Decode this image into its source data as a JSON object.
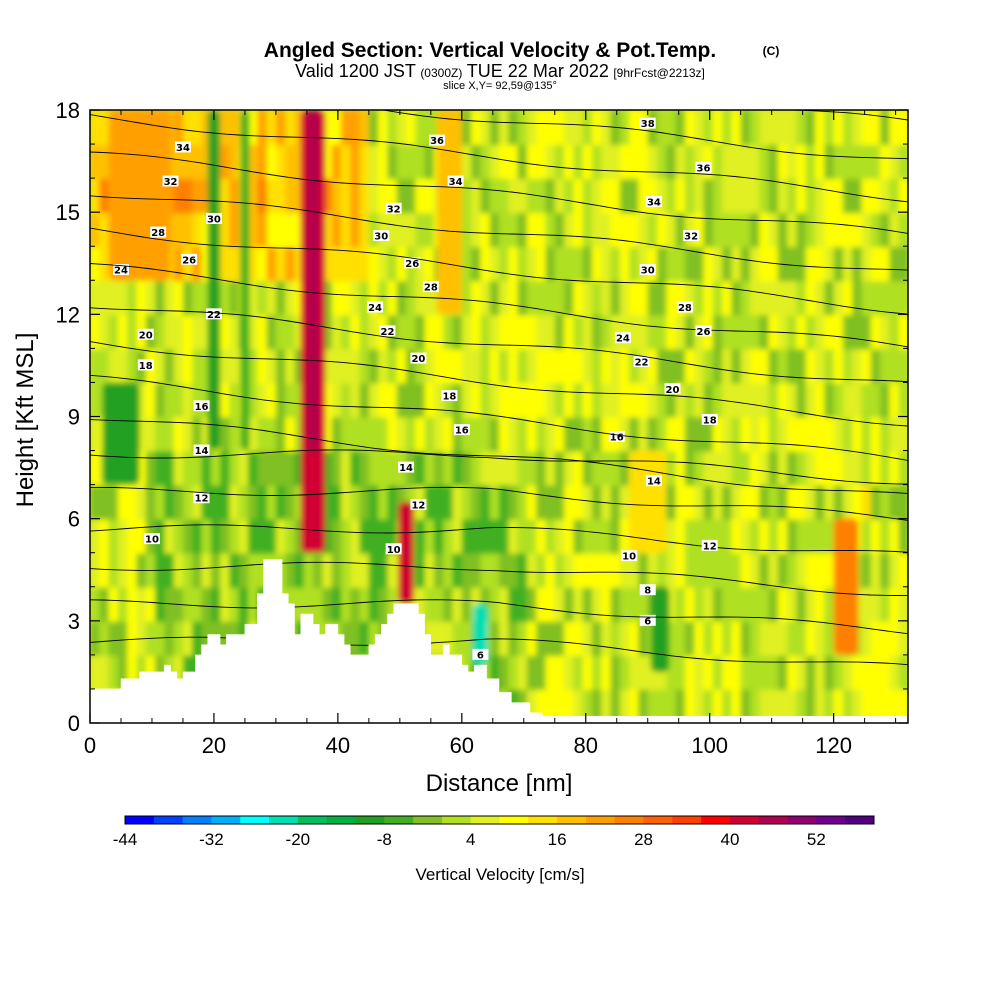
{
  "chart_data": {
    "type": "heatmap",
    "title": "Angled Section: Vertical Velocity & Pot.Temp.",
    "title_unit": "(C)",
    "subtitle_parts": [
      "Valid 1200 JST",
      "(0300Z)",
      "TUE 22 Mar 2022",
      "[9hrFcst@2213z]"
    ],
    "subtitle2": "slice X,Y= 92,59@135°",
    "xlabel": "Distance [nm]",
    "ylabel": "Height [Kft MSL]",
    "xlim": [
      0,
      132
    ],
    "ylim": [
      0,
      18
    ],
    "x_ticks": [
      "0",
      "20",
      "40",
      "60",
      "80",
      "100",
      "120"
    ],
    "y_ticks": [
      "0",
      "3",
      "6",
      "9",
      "12",
      "15",
      "18"
    ],
    "colorbar": {
      "label": "Vertical Velocity [cm/s]",
      "tick_labels": [
        "-44",
        "-32",
        "-20",
        "-8",
        "4",
        "16",
        "28",
        "40",
        "52"
      ],
      "colors": [
        "#0000ff",
        "#0040ff",
        "#0080ff",
        "#00b0ff",
        "#00ffff",
        "#00e0b0",
        "#00c060",
        "#00b040",
        "#20a020",
        "#40b020",
        "#80c020",
        "#b0e020",
        "#e0f020",
        "#ffff00",
        "#ffe000",
        "#ffc000",
        "#ffa000",
        "#ff8000",
        "#ff6000",
        "#ff4000",
        "#ff0000",
        "#d00030",
        "#b00050",
        "#900070",
        "#700090",
        "#500080"
      ]
    },
    "terrain_profile": [
      {
        "x": 0,
        "h": 1.0
      },
      {
        "x": 5,
        "h": 1.0
      },
      {
        "x": 5,
        "h": 1.3
      },
      {
        "x": 8,
        "h": 1.3
      },
      {
        "x": 8,
        "h": 1.5
      },
      {
        "x": 12,
        "h": 1.5
      },
      {
        "x": 12,
        "h": 1.7
      },
      {
        "x": 13,
        "h": 1.7
      },
      {
        "x": 13,
        "h": 1.5
      },
      {
        "x": 14,
        "h": 1.5
      },
      {
        "x": 14,
        "h": 1.3
      },
      {
        "x": 15,
        "h": 1.3
      },
      {
        "x": 15,
        "h": 1.5
      },
      {
        "x": 17,
        "h": 1.5
      },
      {
        "x": 17,
        "h": 2.0
      },
      {
        "x": 18,
        "h": 2.0
      },
      {
        "x": 18,
        "h": 2.3
      },
      {
        "x": 19,
        "h": 2.3
      },
      {
        "x": 19,
        "h": 2.6
      },
      {
        "x": 21,
        "h": 2.6
      },
      {
        "x": 21,
        "h": 2.3
      },
      {
        "x": 22,
        "h": 2.3
      },
      {
        "x": 22,
        "h": 2.6
      },
      {
        "x": 25,
        "h": 2.6
      },
      {
        "x": 25,
        "h": 2.9
      },
      {
        "x": 27,
        "h": 2.9
      },
      {
        "x": 27,
        "h": 3.8
      },
      {
        "x": 28,
        "h": 3.8
      },
      {
        "x": 28,
        "h": 4.8
      },
      {
        "x": 31,
        "h": 4.8
      },
      {
        "x": 31,
        "h": 3.8
      },
      {
        "x": 32,
        "h": 3.8
      },
      {
        "x": 32,
        "h": 3.5
      },
      {
        "x": 33,
        "h": 3.5
      },
      {
        "x": 33,
        "h": 2.6
      },
      {
        "x": 34,
        "h": 2.6
      },
      {
        "x": 34,
        "h": 3.2
      },
      {
        "x": 36,
        "h": 3.2
      },
      {
        "x": 36,
        "h": 2.9
      },
      {
        "x": 37,
        "h": 2.9
      },
      {
        "x": 37,
        "h": 2.6
      },
      {
        "x": 38,
        "h": 2.6
      },
      {
        "x": 38,
        "h": 2.9
      },
      {
        "x": 40,
        "h": 2.9
      },
      {
        "x": 40,
        "h": 2.6
      },
      {
        "x": 41,
        "h": 2.6
      },
      {
        "x": 41,
        "h": 2.3
      },
      {
        "x": 42,
        "h": 2.3
      },
      {
        "x": 42,
        "h": 2.0
      },
      {
        "x": 45,
        "h": 2.0
      },
      {
        "x": 45,
        "h": 2.3
      },
      {
        "x": 46,
        "h": 2.3
      },
      {
        "x": 46,
        "h": 2.6
      },
      {
        "x": 47,
        "h": 2.6
      },
      {
        "x": 47,
        "h": 2.9
      },
      {
        "x": 48,
        "h": 2.9
      },
      {
        "x": 48,
        "h": 3.2
      },
      {
        "x": 49,
        "h": 3.2
      },
      {
        "x": 49,
        "h": 3.5
      },
      {
        "x": 53,
        "h": 3.5
      },
      {
        "x": 53,
        "h": 3.2
      },
      {
        "x": 54,
        "h": 3.2
      },
      {
        "x": 54,
        "h": 2.6
      },
      {
        "x": 55,
        "h": 2.6
      },
      {
        "x": 55,
        "h": 2.0
      },
      {
        "x": 57,
        "h": 2.0
      },
      {
        "x": 57,
        "h": 2.3
      },
      {
        "x": 58,
        "h": 2.3
      },
      {
        "x": 58,
        "h": 2.0
      },
      {
        "x": 60,
        "h": 2.0
      },
      {
        "x": 60,
        "h": 1.7
      },
      {
        "x": 61,
        "h": 1.7
      },
      {
        "x": 61,
        "h": 1.5
      },
      {
        "x": 62,
        "h": 1.5
      },
      {
        "x": 62,
        "h": 1.7
      },
      {
        "x": 64,
        "h": 1.7
      },
      {
        "x": 64,
        "h": 1.3
      },
      {
        "x": 66,
        "h": 1.3
      },
      {
        "x": 66,
        "h": 0.9
      },
      {
        "x": 68,
        "h": 0.9
      },
      {
        "x": 68,
        "h": 0.6
      },
      {
        "x": 71,
        "h": 0.6
      },
      {
        "x": 71,
        "h": 0.3
      },
      {
        "x": 73,
        "h": 0.3
      },
      {
        "x": 73,
        "h": 0.2
      },
      {
        "x": 132,
        "h": 0.2
      }
    ],
    "potential_temperature_contours": [
      {
        "value": "6",
        "label_at": [
          [
            90,
            3.0
          ],
          [
            63,
            2.0
          ]
        ]
      },
      {
        "value": "8",
        "label_at": [
          [
            90,
            3.9
          ]
        ]
      },
      {
        "value": "10",
        "label_at": [
          [
            10,
            5.4
          ],
          [
            49,
            5.1
          ],
          [
            87,
            4.9
          ]
        ]
      },
      {
        "value": "12",
        "label_at": [
          [
            18,
            6.6
          ],
          [
            53,
            6.4
          ],
          [
            100,
            5.2
          ]
        ]
      },
      {
        "value": "14",
        "label_at": [
          [
            18,
            8.0
          ],
          [
            51,
            7.5
          ],
          [
            91,
            7.1
          ]
        ]
      },
      {
        "value": "16",
        "label_at": [
          [
            18,
            9.3
          ],
          [
            60,
            8.6
          ],
          [
            85,
            8.4
          ]
        ]
      },
      {
        "value": "18",
        "label_at": [
          [
            9,
            10.5
          ],
          [
            58,
            9.6
          ],
          [
            100,
            8.9
          ]
        ]
      },
      {
        "value": "20",
        "label_at": [
          [
            9,
            11.4
          ],
          [
            53,
            10.7
          ],
          [
            94,
            9.8
          ]
        ]
      },
      {
        "value": "22",
        "label_at": [
          [
            20,
            12.0
          ],
          [
            48,
            11.5
          ],
          [
            89,
            10.6
          ]
        ]
      },
      {
        "value": "24",
        "label_at": [
          [
            5,
            13.3
          ],
          [
            46,
            12.2
          ],
          [
            86,
            11.3
          ]
        ]
      },
      {
        "value": "26",
        "label_at": [
          [
            16,
            13.6
          ],
          [
            52,
            13.5
          ],
          [
            99,
            11.5
          ]
        ]
      },
      {
        "value": "28",
        "label_at": [
          [
            11,
            14.4
          ],
          [
            55,
            12.8
          ],
          [
            96,
            12.2
          ]
        ]
      },
      {
        "value": "30",
        "label_at": [
          [
            20,
            14.8
          ],
          [
            47,
            14.3
          ],
          [
            90,
            13.3
          ]
        ]
      },
      {
        "value": "32",
        "label_at": [
          [
            13,
            15.9
          ],
          [
            49,
            15.1
          ],
          [
            97,
            14.3
          ]
        ]
      },
      {
        "value": "34",
        "label_at": [
          [
            15,
            16.9
          ],
          [
            59,
            15.9
          ],
          [
            91,
            15.3
          ]
        ]
      },
      {
        "value": "36",
        "label_at": [
          [
            56,
            17.1
          ],
          [
            99,
            16.3
          ]
        ]
      },
      {
        "value": "38",
        "label_at": [
          [
            90,
            17.6
          ]
        ]
      }
    ],
    "velocity_features": [
      {
        "x": 36,
        "h0": 5,
        "h1": 18,
        "w": 4,
        "v": 40
      },
      {
        "x": 36,
        "h0": 8,
        "h1": 18,
        "w": 1.6,
        "v": 46
      },
      {
        "x": 51,
        "h0": 3.5,
        "h1": 6.5,
        "w": 2.5,
        "v": 40
      },
      {
        "x": 20,
        "h0": 8,
        "h1": 18,
        "w": 2,
        "v": -12
      },
      {
        "x": 25,
        "h0": 8,
        "h1": 18,
        "w": 1.5,
        "v": -8
      },
      {
        "x": 63,
        "h0": 1.7,
        "h1": 3.5,
        "w": 2.5,
        "v": -22
      },
      {
        "x": 5,
        "h0": 7,
        "h1": 10,
        "w": 6,
        "v": -12
      },
      {
        "x": 92,
        "h0": 1.5,
        "h1": 4,
        "w": 3,
        "v": -10
      },
      {
        "x": 122,
        "h0": 2,
        "h1": 6,
        "w": 4,
        "v": 24
      },
      {
        "x": 90,
        "h0": 5,
        "h1": 8,
        "w": 6,
        "v": 12
      },
      {
        "x": 8,
        "h0": 13,
        "h1": 18,
        "w": 10,
        "v": 20
      },
      {
        "x": 58,
        "h0": 12,
        "h1": 18,
        "w": 4,
        "v": 18
      }
    ]
  }
}
